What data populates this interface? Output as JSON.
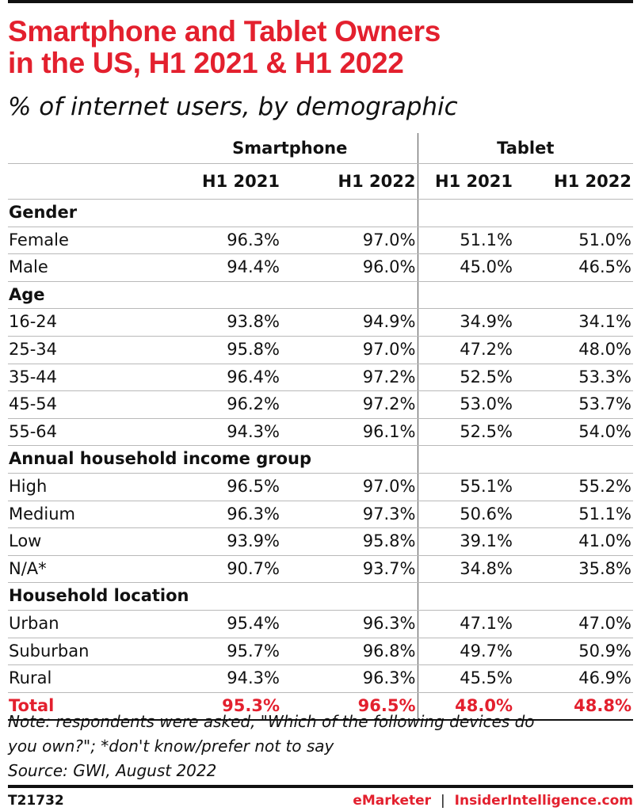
{
  "title_line1": "Smartphone and Tablet Owners",
  "title_line2": "in the US, H1 2021 & H1 2022",
  "subtitle": "% of internet users, by demographic",
  "chart_data": {
    "type": "table",
    "groups": [
      "Smartphone",
      "Tablet"
    ],
    "columns": [
      "H1 2021",
      "H1 2022",
      "H1 2021",
      "H1 2022"
    ],
    "sections": [
      {
        "name": "Gender",
        "rows": [
          {
            "label": "Female",
            "values": [
              "96.3%",
              "97.0%",
              "51.1%",
              "51.0%"
            ]
          },
          {
            "label": "Male",
            "values": [
              "94.4%",
              "96.0%",
              "45.0%",
              "46.5%"
            ]
          }
        ]
      },
      {
        "name": "Age",
        "rows": [
          {
            "label": "16-24",
            "values": [
              "93.8%",
              "94.9%",
              "34.9%",
              "34.1%"
            ]
          },
          {
            "label": "25-34",
            "values": [
              "95.8%",
              "97.0%",
              "47.2%",
              "48.0%"
            ]
          },
          {
            "label": "35-44",
            "values": [
              "96.4%",
              "97.2%",
              "52.5%",
              "53.3%"
            ]
          },
          {
            "label": "45-54",
            "values": [
              "96.2%",
              "97.2%",
              "53.0%",
              "53.7%"
            ]
          },
          {
            "label": "55-64",
            "values": [
              "94.3%",
              "96.1%",
              "52.5%",
              "54.0%"
            ]
          }
        ]
      },
      {
        "name": "Annual household income group",
        "rows": [
          {
            "label": "High",
            "values": [
              "96.5%",
              "97.0%",
              "55.1%",
              "55.2%"
            ]
          },
          {
            "label": "Medium",
            "values": [
              "96.3%",
              "97.3%",
              "50.6%",
              "51.1%"
            ]
          },
          {
            "label": "Low",
            "values": [
              "93.9%",
              "95.8%",
              "39.1%",
              "41.0%"
            ]
          },
          {
            "label": "N/A*",
            "values": [
              "90.7%",
              "93.7%",
              "34.8%",
              "35.8%"
            ]
          }
        ]
      },
      {
        "name": "Household location",
        "rows": [
          {
            "label": "Urban",
            "values": [
              "95.4%",
              "96.3%",
              "47.1%",
              "47.0%"
            ]
          },
          {
            "label": "Suburban",
            "values": [
              "95.7%",
              "96.8%",
              "49.7%",
              "50.9%"
            ]
          },
          {
            "label": "Rural",
            "values": [
              "94.3%",
              "96.3%",
              "45.5%",
              "46.9%"
            ]
          }
        ]
      }
    ],
    "total": {
      "label": "Total",
      "values": [
        "95.3%",
        "96.5%",
        "48.0%",
        "48.8%"
      ]
    },
    "colors": {
      "accent": "#e3202e",
      "text": "#111111",
      "rule": "#b9b9b9"
    }
  },
  "note_line1": "Note: respondents were asked, \"Which of the following devices do",
  "note_line2": "you own?\"; *don't know/prefer not to say",
  "source": "Source: GWI, August 2022",
  "footer": {
    "code": "T21732",
    "brand_left": "eMarketer",
    "brand_sep": "|",
    "brand_right": "InsiderIntelligence.com"
  }
}
